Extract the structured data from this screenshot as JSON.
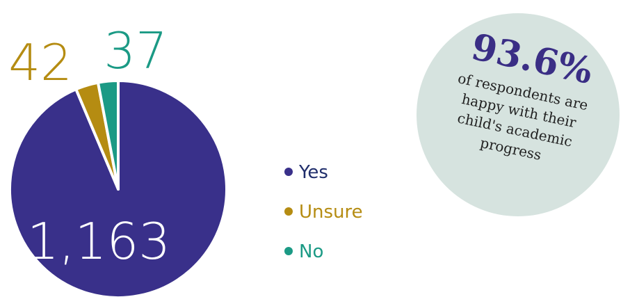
{
  "chart_data": {
    "type": "pie",
    "categories": [
      "Yes",
      "Unsure",
      "No"
    ],
    "values": [
      1163,
      42,
      37
    ],
    "value_labels": [
      "1,163",
      "42",
      "37"
    ],
    "colors": [
      "#39308a",
      "#b58c12",
      "#1b9a85"
    ],
    "legend_text_colors": [
      "#1f2d6b",
      "#b58c12",
      "#1b9a85"
    ],
    "callout": {
      "headline": "93.6%",
      "lines": [
        "of respondents are",
        "happy with their",
        "child's academic",
        "progress"
      ]
    }
  }
}
